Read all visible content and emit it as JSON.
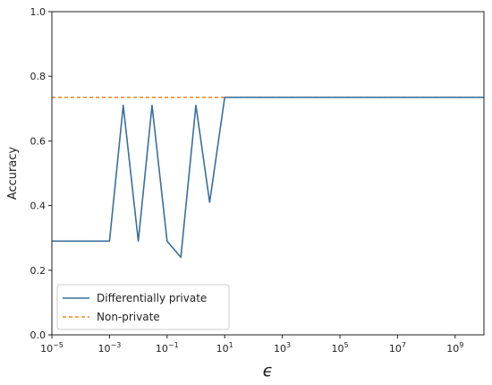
{
  "chart_data": {
    "type": "line",
    "xlabel": "ϵ",
    "ylabel": "Accuracy",
    "xscale": "log",
    "xlim": [
      1e-05,
      10000000000.0
    ],
    "ylim": [
      0.0,
      1.0
    ],
    "grid": false,
    "legend_position": "lower-left",
    "x_ticks": [
      {
        "value": 1e-05,
        "base": "10",
        "exp": "−5"
      },
      {
        "value": 0.001,
        "base": "10",
        "exp": "−3"
      },
      {
        "value": 0.1,
        "base": "10",
        "exp": "−1"
      },
      {
        "value": 10.0,
        "base": "10",
        "exp": "1"
      },
      {
        "value": 1000.0,
        "base": "10",
        "exp": "3"
      },
      {
        "value": 100000.0,
        "base": "10",
        "exp": "5"
      },
      {
        "value": 10000000.0,
        "base": "10",
        "exp": "7"
      },
      {
        "value": 1000000000.0,
        "base": "10",
        "exp": "9"
      }
    ],
    "y_ticks": [
      {
        "value": 0.0,
        "label": "0.0"
      },
      {
        "value": 0.2,
        "label": "0.2"
      },
      {
        "value": 0.4,
        "label": "0.4"
      },
      {
        "value": 0.6,
        "label": "0.6"
      },
      {
        "value": 0.8,
        "label": "0.8"
      },
      {
        "value": 1.0,
        "label": "1.0"
      }
    ],
    "series": [
      {
        "name": "Differentially private",
        "style": "solid",
        "color": "#3b6f9a",
        "x": [
          1e-05,
          0.0001,
          0.001,
          0.003,
          0.01,
          0.03,
          0.1,
          0.3,
          1,
          3,
          10,
          100,
          1000.0,
          10000.0,
          100000.0,
          1000000.0,
          10000000.0,
          100000000.0,
          1000000000.0,
          10000000000.0
        ],
        "y": [
          0.29,
          0.29,
          0.29,
          0.71,
          0.29,
          0.71,
          0.29,
          0.24,
          0.71,
          0.41,
          0.735,
          0.735,
          0.735,
          0.735,
          0.735,
          0.735,
          0.735,
          0.735,
          0.735,
          0.735
        ]
      },
      {
        "name": "Non-private",
        "style": "dashed",
        "color": "#f08a24",
        "x": [
          1e-05,
          10000000000.0
        ],
        "y": [
          0.735,
          0.735
        ]
      }
    ]
  }
}
